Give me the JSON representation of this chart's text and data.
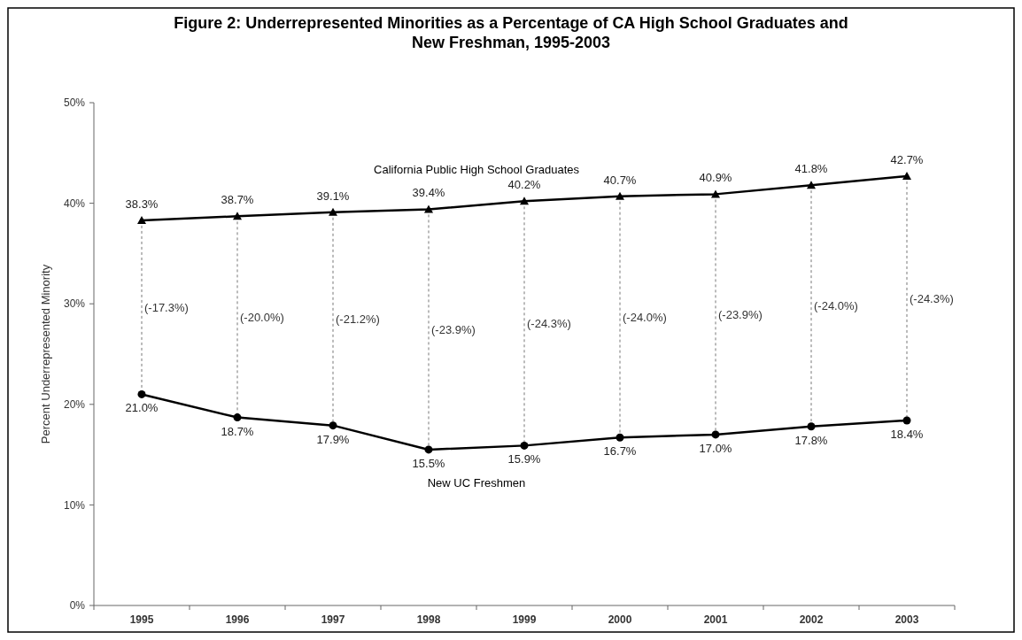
{
  "chart_data": {
    "type": "line",
    "title": "Figure 2:  Underrepresented Minorities as a Percentage of CA High School Graduates and New Freshman, 1995-2003",
    "ylabel": "Percent Underrepresented Minority",
    "categories": [
      "1995",
      "1996",
      "1997",
      "1998",
      "1999",
      "2000",
      "2001",
      "2002",
      "2003"
    ],
    "series": [
      {
        "name": "California Public High School Graduates",
        "color": "#000000",
        "marker": "triangle",
        "values": [
          38.3,
          38.7,
          39.1,
          39.4,
          40.2,
          40.7,
          40.9,
          41.8,
          42.7
        ],
        "value_labels": [
          "38.3%",
          "38.7%",
          "39.1%",
          "39.4%",
          "40.2%",
          "40.7%",
          "40.9%",
          "41.8%",
          "42.7%"
        ]
      },
      {
        "name": "New UC Freshmen",
        "color": "#000000",
        "marker": "circle",
        "values": [
          21.0,
          18.7,
          17.9,
          15.5,
          15.9,
          16.7,
          17.0,
          17.8,
          18.4
        ],
        "value_labels": [
          "21.0%",
          "18.7%",
          "17.9%",
          "15.5%",
          "15.9%",
          "16.7%",
          "17.0%",
          "17.8%",
          "18.4%"
        ]
      }
    ],
    "ylim": [
      0,
      50
    ],
    "yticks": [
      {
        "value": 0,
        "label": "0%"
      },
      {
        "value": 10,
        "label": "10%"
      },
      {
        "value": 20,
        "label": "20%"
      },
      {
        "value": 30,
        "label": "30%"
      },
      {
        "value": 40,
        "label": "40%"
      },
      {
        "value": 50,
        "label": "50%"
      }
    ],
    "annotations": [
      "(-17.3%)",
      "(-20.0%)",
      "(-21.2%)",
      "(-23.9%)",
      "(-24.3%)",
      "(-24.0%)",
      "(-23.9%)",
      "(-24.0%)",
      "(-24.3%)"
    ],
    "grid": false,
    "legend": false
  }
}
